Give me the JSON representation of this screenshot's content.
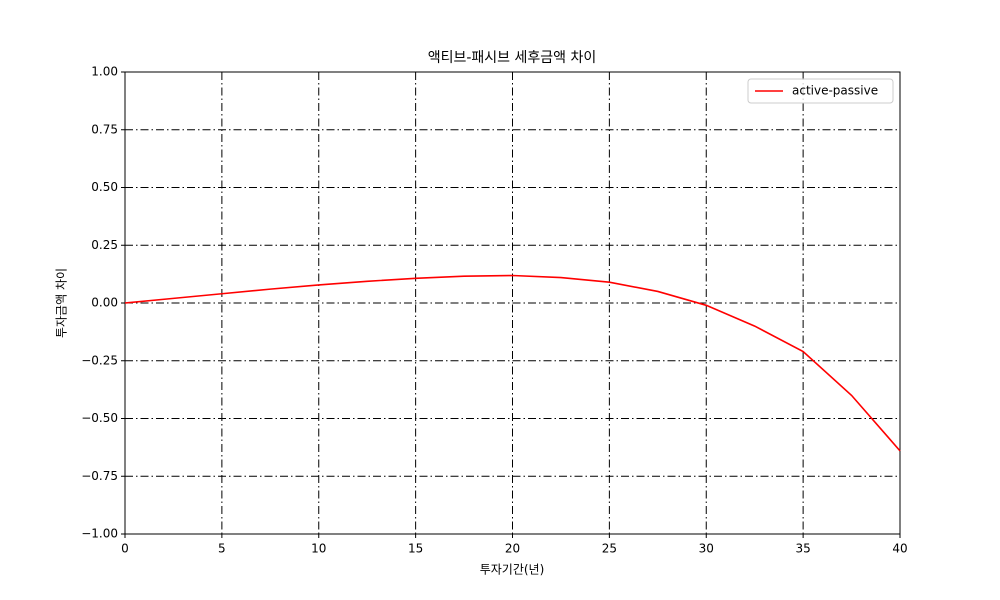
{
  "chart_data": {
    "type": "line",
    "title": "액티브-패시브 세후금액 차이",
    "x_label": "투자기간(년)",
    "y_label": "투자금액 차이",
    "x": [
      0,
      2.5,
      5,
      7.5,
      10,
      12.5,
      15,
      17.5,
      20,
      22.5,
      25,
      27.5,
      30,
      32.5,
      35,
      37.5,
      40
    ],
    "series": [
      {
        "name": "active-passive",
        "color": "#ff0000",
        "values": [
          0,
          0.02,
          0.04,
          0.06,
          0.078,
          0.094,
          0.107,
          0.116,
          0.119,
          0.11,
          0.09,
          0.05,
          -0.01,
          -0.1,
          -0.21,
          -0.4,
          -0.64
        ]
      }
    ],
    "xlim": [
      0,
      40
    ],
    "xticks": [
      0,
      5,
      10,
      15,
      20,
      25,
      30,
      35,
      40
    ],
    "ylim": [
      -1,
      1
    ],
    "yticks": [
      {
        "value": -1,
        "label": "−1.00"
      },
      {
        "value": -0.75,
        "label": "−0.75"
      },
      {
        "value": -0.5,
        "label": "−0.50"
      },
      {
        "value": -0.25,
        "label": "−0.25"
      },
      {
        "value": 0,
        "label": "0.00"
      },
      {
        "value": 0.25,
        "label": "0.25"
      },
      {
        "value": 0.5,
        "label": "0.50"
      },
      {
        "value": 0.75,
        "label": "0.75"
      },
      {
        "value": 1,
        "label": "1.00"
      }
    ],
    "grid": true,
    "legend": "upper right"
  }
}
